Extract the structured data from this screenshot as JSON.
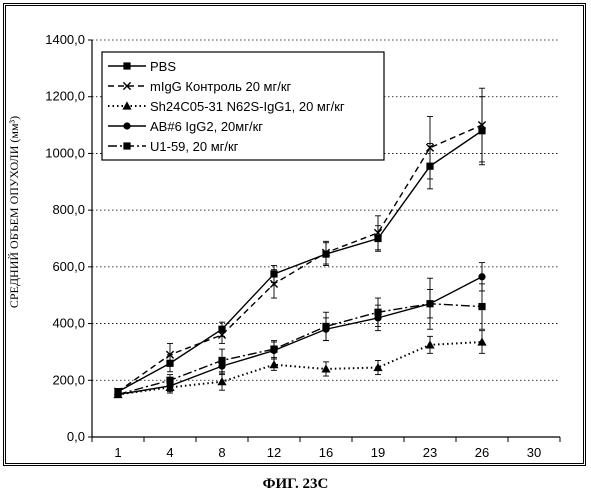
{
  "figure_caption": "ФИГ. 23С",
  "chart_data": {
    "type": "line",
    "title": "",
    "xlabel": "",
    "ylabel": "СРЕДНИЙ ОБЪЕМ ОПУХОЛИ (мм³)",
    "x_ticks": [
      "1",
      "4",
      "8",
      "12",
      "16",
      "19",
      "23",
      "26",
      "30"
    ],
    "y_ticks": [
      "0,0",
      "200,0",
      "400,0",
      "600,0",
      "800,0",
      "1000,0",
      "1200,0",
      "1400,0"
    ],
    "ylim": [
      0,
      1400
    ],
    "grid": "horizontal dotted",
    "legend_position": "top-left",
    "series": [
      {
        "name": "PBS",
        "style": "solid",
        "marker": "square",
        "values": [
          160,
          260,
          380,
          575,
          645,
          700,
          955,
          1080
        ],
        "errors": [
          10,
          30,
          25,
          30,
          40,
          45,
          80,
          120
        ]
      },
      {
        "name": "mIgG Контроль 20 мг/кг",
        "style": "dashed",
        "marker": "x",
        "values": [
          160,
          290,
          360,
          540,
          650,
          720,
          1020,
          1100
        ],
        "errors": [
          10,
          40,
          30,
          50,
          40,
          60,
          110,
          130
        ]
      },
      {
        "name": "Sh24C05-31 N62S-IgG1, 20 мг/кг",
        "style": "dotted",
        "marker": "triangle",
        "values": [
          150,
          175,
          195,
          255,
          240,
          245,
          325,
          335
        ],
        "errors": [
          10,
          20,
          30,
          20,
          25,
          25,
          30,
          40
        ]
      },
      {
        "name": "AB#6 IgG2, 20мг/кг",
        "style": "solid",
        "marker": "circle",
        "values": [
          150,
          180,
          250,
          305,
          380,
          420,
          470,
          565
        ],
        "errors": [
          10,
          20,
          30,
          30,
          40,
          45,
          50,
          50
        ]
      },
      {
        "name": "U1-59, 20 мг/кг",
        "style": "dashdot",
        "marker": "square",
        "values": [
          150,
          200,
          270,
          310,
          390,
          440,
          470,
          460
        ],
        "errors": [
          10,
          20,
          40,
          30,
          50,
          50,
          90,
          80
        ]
      }
    ]
  }
}
